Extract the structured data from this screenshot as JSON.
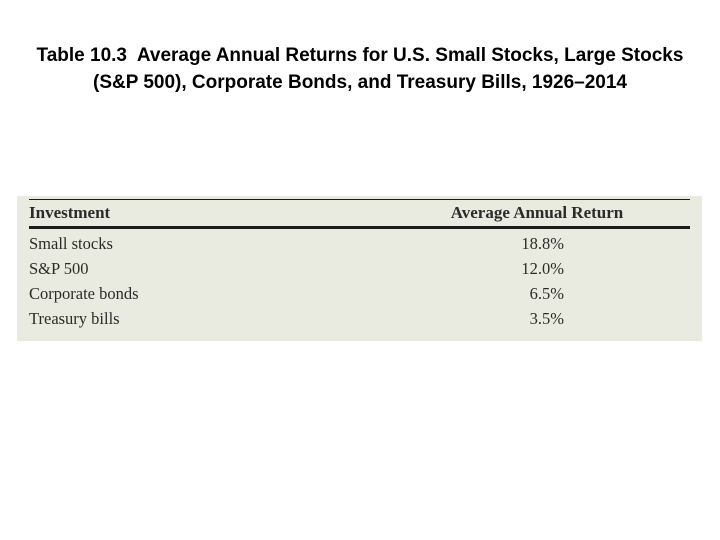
{
  "title": {
    "line1": "Table 10.3  Average Annual Returns for U.S. Small Stocks, Large Stocks",
    "line2": "(S&P 500), Corporate Bonds, and Treasury Bills, 1926–2014"
  },
  "table": {
    "headers": {
      "investment": "Investment",
      "return": "Average Annual Return"
    },
    "rows": [
      {
        "investment": "Small stocks",
        "return": "18.8%"
      },
      {
        "investment": "S&P 500",
        "return": "12.0%"
      },
      {
        "investment": "Corporate bonds",
        "return": "6.5%"
      },
      {
        "investment": "Treasury bills",
        "return": "3.5%"
      }
    ]
  },
  "colors": {
    "page_background": "#ffffff",
    "panel_background": "#e9ebe1",
    "rule": "#1c1c1a",
    "table_text": "#2b2b28",
    "title_text": "#000000"
  },
  "chart_data": {
    "type": "table",
    "title": "Table 10.3 Average Annual Returns for U.S. Small Stocks, Large Stocks (S&P 500), Corporate Bonds, and Treasury Bills, 1926–2014",
    "columns": [
      "Investment",
      "Average Annual Return"
    ],
    "categories": [
      "Small stocks",
      "S&P 500",
      "Corporate bonds",
      "Treasury bills"
    ],
    "values": [
      18.8,
      12.0,
      6.5,
      3.5
    ],
    "unit": "%"
  }
}
